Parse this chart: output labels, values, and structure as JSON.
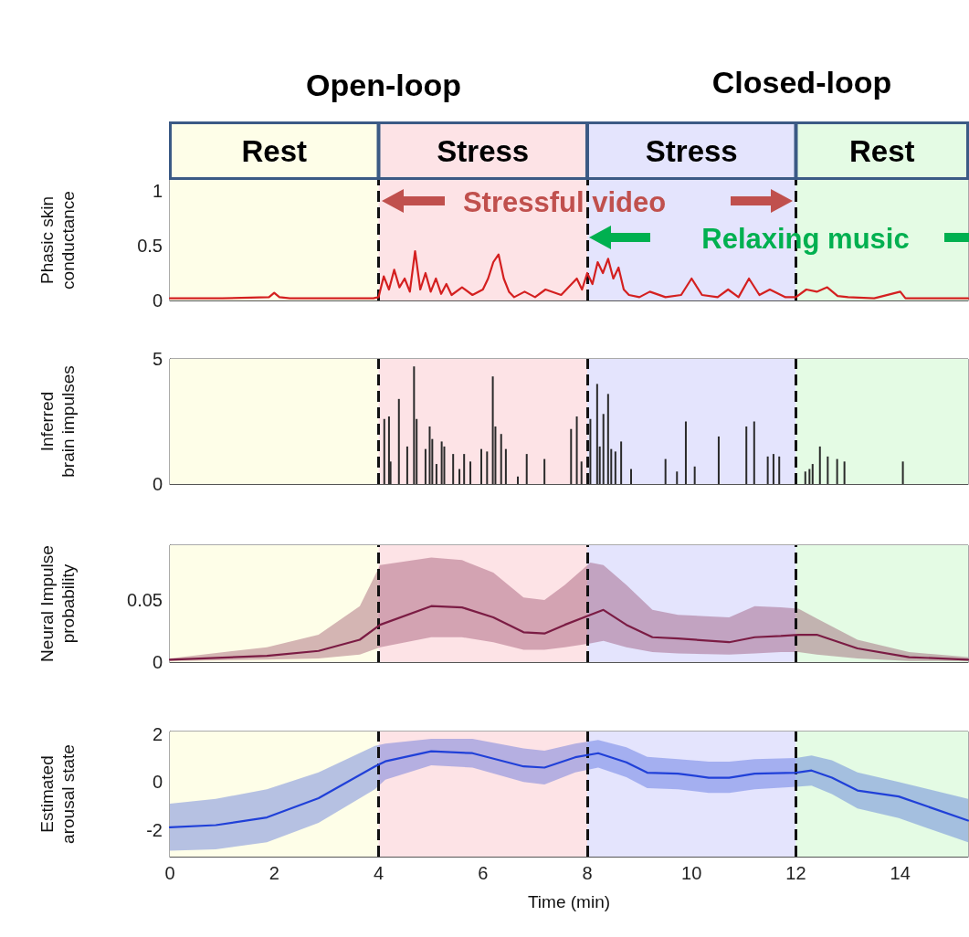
{
  "chart_data": [
    {
      "type": "line",
      "ylabel": "Phasic skin conductance",
      "xlim": [
        0,
        15.3
      ],
      "xticks": [
        0,
        2,
        4,
        6,
        8,
        10,
        12,
        14
      ],
      "ylim": [
        0,
        1.1
      ],
      "yticks": [
        0,
        0.5,
        1
      ],
      "tick_labels": "y",
      "annotations": [
        "Open-loop",
        "Closed-loop",
        "Stressful video",
        "Relaxing music"
      ],
      "bands": [
        {
          "axis": "x",
          "from": 0,
          "to": 4,
          "label": "Rest",
          "color": "#fefee8"
        },
        {
          "axis": "x",
          "from": 4,
          "to": 8,
          "label": "Stress",
          "color": "#fde3e6"
        },
        {
          "axis": "x",
          "from": 8,
          "to": 12,
          "label": "Stress",
          "color": "#e4e4fd"
        },
        {
          "axis": "x",
          "from": 12,
          "to": 15.3,
          "label": "Rest",
          "color": "#e4fbe4"
        }
      ],
      "ref_lines": [
        {
          "axis": "x",
          "value": 4,
          "line_style": "dashed",
          "color": "#111111"
        },
        {
          "axis": "x",
          "value": 8,
          "line_style": "dashed",
          "color": "#111111"
        },
        {
          "axis": "x",
          "value": 12,
          "line_style": "dashed",
          "color": "#111111"
        }
      ],
      "series": [
        {
          "color": "#d42020",
          "x": [
            0,
            1.0,
            1.9,
            2.0,
            2.1,
            2.3,
            3.9,
            4.0,
            4.1,
            4.2,
            4.3,
            4.4,
            4.5,
            4.6,
            4.7,
            4.8,
            4.9,
            5.0,
            5.1,
            5.2,
            5.3,
            5.4,
            5.6,
            5.8,
            6.0,
            6.1,
            6.2,
            6.3,
            6.4,
            6.5,
            6.6,
            6.8,
            7.0,
            7.2,
            7.5,
            7.7,
            7.8,
            7.9,
            8.0,
            8.1,
            8.2,
            8.3,
            8.4,
            8.5,
            8.6,
            8.7,
            8.8,
            9.0,
            9.2,
            9.5,
            9.8,
            10.0,
            10.2,
            10.5,
            10.7,
            10.9,
            11.1,
            11.3,
            11.5,
            11.8,
            12.0,
            12.2,
            12.4,
            12.6,
            12.8,
            13.0,
            13.5,
            14.0,
            14.1,
            14.5,
            15.3
          ],
          "values": [
            0.02,
            0.02,
            0.03,
            0.07,
            0.03,
            0.02,
            0.02,
            0.03,
            0.22,
            0.1,
            0.28,
            0.12,
            0.2,
            0.08,
            0.45,
            0.1,
            0.25,
            0.08,
            0.2,
            0.06,
            0.15,
            0.05,
            0.12,
            0.05,
            0.1,
            0.2,
            0.35,
            0.42,
            0.2,
            0.08,
            0.03,
            0.08,
            0.03,
            0.1,
            0.05,
            0.15,
            0.2,
            0.1,
            0.25,
            0.15,
            0.35,
            0.25,
            0.38,
            0.2,
            0.3,
            0.1,
            0.05,
            0.03,
            0.08,
            0.03,
            0.05,
            0.2,
            0.05,
            0.03,
            0.1,
            0.03,
            0.2,
            0.05,
            0.1,
            0.03,
            0.03,
            0.1,
            0.08,
            0.12,
            0.04,
            0.03,
            0.02,
            0.08,
            0.02,
            0.02,
            0.02
          ]
        }
      ]
    },
    {
      "type": "bar",
      "ylabel": "Inferred brain impulses",
      "xlim": [
        0,
        15.3
      ],
      "xticks": [
        0,
        2,
        4,
        6,
        8,
        10,
        12,
        14
      ],
      "ylim": [
        0,
        5
      ],
      "yticks": [
        0,
        5
      ],
      "tick_labels": "y",
      "bands": [
        {
          "axis": "x",
          "from": 0,
          "to": 4,
          "color": "#fefee8"
        },
        {
          "axis": "x",
          "from": 4,
          "to": 8,
          "color": "#fde3e6"
        },
        {
          "axis": "x",
          "from": 8,
          "to": 12,
          "color": "#e4e4fd"
        },
        {
          "axis": "x",
          "from": 12,
          "to": 15.3,
          "color": "#e4fbe4"
        }
      ],
      "ref_lines": [
        {
          "axis": "x",
          "value": 4,
          "line_style": "dashed",
          "color": "#111111"
        },
        {
          "axis": "x",
          "value": 8,
          "line_style": "dashed",
          "color": "#111111"
        },
        {
          "axis": "x",
          "value": 12,
          "line_style": "dashed",
          "color": "#111111"
        }
      ],
      "series": [
        {
          "color": "#2a2a2a",
          "x": [
            4.11,
            4.2,
            4.23,
            4.39,
            4.55,
            4.68,
            4.73,
            4.9,
            4.98,
            5.03,
            5.11,
            5.21,
            5.26,
            5.43,
            5.55,
            5.64,
            5.76,
            5.97,
            6.08,
            6.19,
            6.24,
            6.35,
            6.44,
            6.67,
            6.84,
            7.18,
            7.69,
            7.8,
            7.89,
            8.06,
            8.19,
            8.24,
            8.31,
            8.4,
            8.46,
            8.54,
            8.65,
            8.84,
            9.5,
            9.72,
            9.89,
            10.06,
            10.52,
            11.05,
            11.2,
            11.46,
            11.57,
            11.68,
            12.18,
            12.26,
            12.32,
            12.46,
            12.61,
            12.79,
            12.93,
            14.05
          ],
          "values": [
            2.6,
            2.7,
            0.9,
            3.4,
            1.5,
            4.7,
            2.6,
            1.4,
            2.3,
            1.8,
            0.8,
            1.7,
            1.5,
            1.2,
            0.6,
            1.2,
            0.9,
            1.4,
            1.3,
            4.3,
            2.3,
            2.0,
            1.4,
            0.3,
            1.2,
            1.0,
            2.2,
            2.7,
            0.9,
            2.6,
            4.0,
            1.5,
            2.8,
            3.6,
            1.4,
            1.3,
            1.7,
            0.6,
            1.0,
            0.5,
            2.5,
            0.7,
            1.9,
            2.3,
            2.5,
            1.1,
            1.2,
            1.1,
            0.5,
            0.6,
            0.8,
            1.5,
            1.1,
            1.0,
            0.9,
            0.9
          ]
        }
      ]
    },
    {
      "type": "line",
      "ylabel": "Neural Impulse probability",
      "xlim": [
        0,
        15.3
      ],
      "xticks": [
        0,
        2,
        4,
        6,
        8,
        10,
        12,
        14
      ],
      "ylim": [
        0,
        0.094
      ],
      "yticks": [
        0,
        0.05
      ],
      "tick_labels": "y",
      "bands": [
        {
          "axis": "x",
          "from": 0,
          "to": 4,
          "color": "#fefee8"
        },
        {
          "axis": "x",
          "from": 4,
          "to": 8,
          "color": "#fde3e6"
        },
        {
          "axis": "x",
          "from": 8,
          "to": 12,
          "color": "#e4e4fd"
        },
        {
          "axis": "x",
          "from": 12,
          "to": 15.3,
          "color": "#e4fbe4"
        }
      ],
      "ref_lines": [
        {
          "axis": "x",
          "value": 4,
          "line_style": "dashed",
          "color": "#111111"
        },
        {
          "axis": "x",
          "value": 8,
          "line_style": "dashed",
          "color": "#111111"
        },
        {
          "axis": "x",
          "value": 12,
          "line_style": "dashed",
          "color": "#111111"
        }
      ],
      "series": [
        {
          "color": "#7b1c44",
          "x": [
            0,
            1.86,
            2.85,
            3.64,
            4.03,
            5.01,
            5.6,
            6.2,
            6.78,
            7.18,
            7.57,
            8.06,
            8.31,
            8.75,
            9.25,
            9.74,
            10.72,
            11.21,
            11.71,
            12.05,
            12.4,
            13.18,
            14.17,
            15.3
          ],
          "values": [
            0.002,
            0.005,
            0.009,
            0.018,
            0.03,
            0.045,
            0.044,
            0.036,
            0.024,
            0.023,
            0.03,
            0.038,
            0.042,
            0.03,
            0.02,
            0.019,
            0.016,
            0.02,
            0.021,
            0.022,
            0.022,
            0.011,
            0.004,
            0.002
          ],
          "upper": [
            0.003,
            0.012,
            0.022,
            0.045,
            0.078,
            0.084,
            0.082,
            0.072,
            0.052,
            0.05,
            0.062,
            0.08,
            0.078,
            0.062,
            0.042,
            0.038,
            0.036,
            0.045,
            0.044,
            0.043,
            0.035,
            0.018,
            0.008,
            0.004
          ],
          "lower": [
            0.001,
            0.002,
            0.003,
            0.006,
            0.012,
            0.02,
            0.02,
            0.016,
            0.01,
            0.01,
            0.012,
            0.015,
            0.017,
            0.012,
            0.008,
            0.007,
            0.006,
            0.007,
            0.008,
            0.008,
            0.006,
            0.003,
            0.001,
            0.001
          ]
        }
      ]
    },
    {
      "type": "line",
      "xlabel": "Time (min)",
      "ylabel": "Estimated arousal state",
      "xlim": [
        0,
        15.3
      ],
      "xticks": [
        0,
        2,
        4,
        6,
        8,
        10,
        12,
        14
      ],
      "ylim": [
        -3.1,
        2.1
      ],
      "yticks": [
        -2,
        0,
        2
      ],
      "bands": [
        {
          "axis": "x",
          "from": 0,
          "to": 4,
          "color": "#fefee8"
        },
        {
          "axis": "x",
          "from": 4,
          "to": 8,
          "color": "#fde3e6"
        },
        {
          "axis": "x",
          "from": 8,
          "to": 12,
          "color": "#e4e4fd"
        },
        {
          "axis": "x",
          "from": 12,
          "to": 15.3,
          "color": "#e4fbe4"
        }
      ],
      "ref_lines": [
        {
          "axis": "x",
          "value": 4,
          "line_style": "dashed",
          "color": "#111111"
        },
        {
          "axis": "x",
          "value": 8,
          "line_style": "dashed",
          "color": "#111111"
        },
        {
          "axis": "x",
          "value": 12,
          "line_style": "dashed",
          "color": "#111111"
        }
      ],
      "series": [
        {
          "color": "#2040d8",
          "x": [
            0,
            0.88,
            1.86,
            2.85,
            3.93,
            4.13,
            5.01,
            5.8,
            6.78,
            7.18,
            7.77,
            8.21,
            8.75,
            9.15,
            9.74,
            10.33,
            10.72,
            11.21,
            12.0,
            12.3,
            12.69,
            13.18,
            13.97,
            15.3
          ],
          "values": [
            -1.88,
            -1.79,
            -1.47,
            -0.67,
            0.65,
            0.86,
            1.28,
            1.2,
            0.65,
            0.6,
            1.03,
            1.2,
            0.82,
            0.39,
            0.35,
            0.18,
            0.18,
            0.35,
            0.39,
            0.48,
            0.18,
            -0.35,
            -0.6,
            -1.6
          ],
          "upper": [
            -0.9,
            -0.7,
            -0.3,
            0.4,
            1.5,
            1.6,
            1.8,
            1.8,
            1.4,
            1.3,
            1.6,
            1.75,
            1.45,
            1.05,
            0.95,
            0.85,
            0.85,
            0.95,
            1.0,
            1.1,
            0.9,
            0.4,
            0.0,
            -0.7
          ],
          "lower": [
            -2.85,
            -2.8,
            -2.5,
            -1.7,
            -0.3,
            0.1,
            0.7,
            0.6,
            0.0,
            -0.1,
            0.4,
            0.6,
            0.2,
            -0.25,
            -0.3,
            -0.45,
            -0.45,
            -0.3,
            -0.2,
            -0.15,
            -0.5,
            -1.1,
            -1.5,
            -2.5
          ]
        }
      ]
    }
  ]
}
